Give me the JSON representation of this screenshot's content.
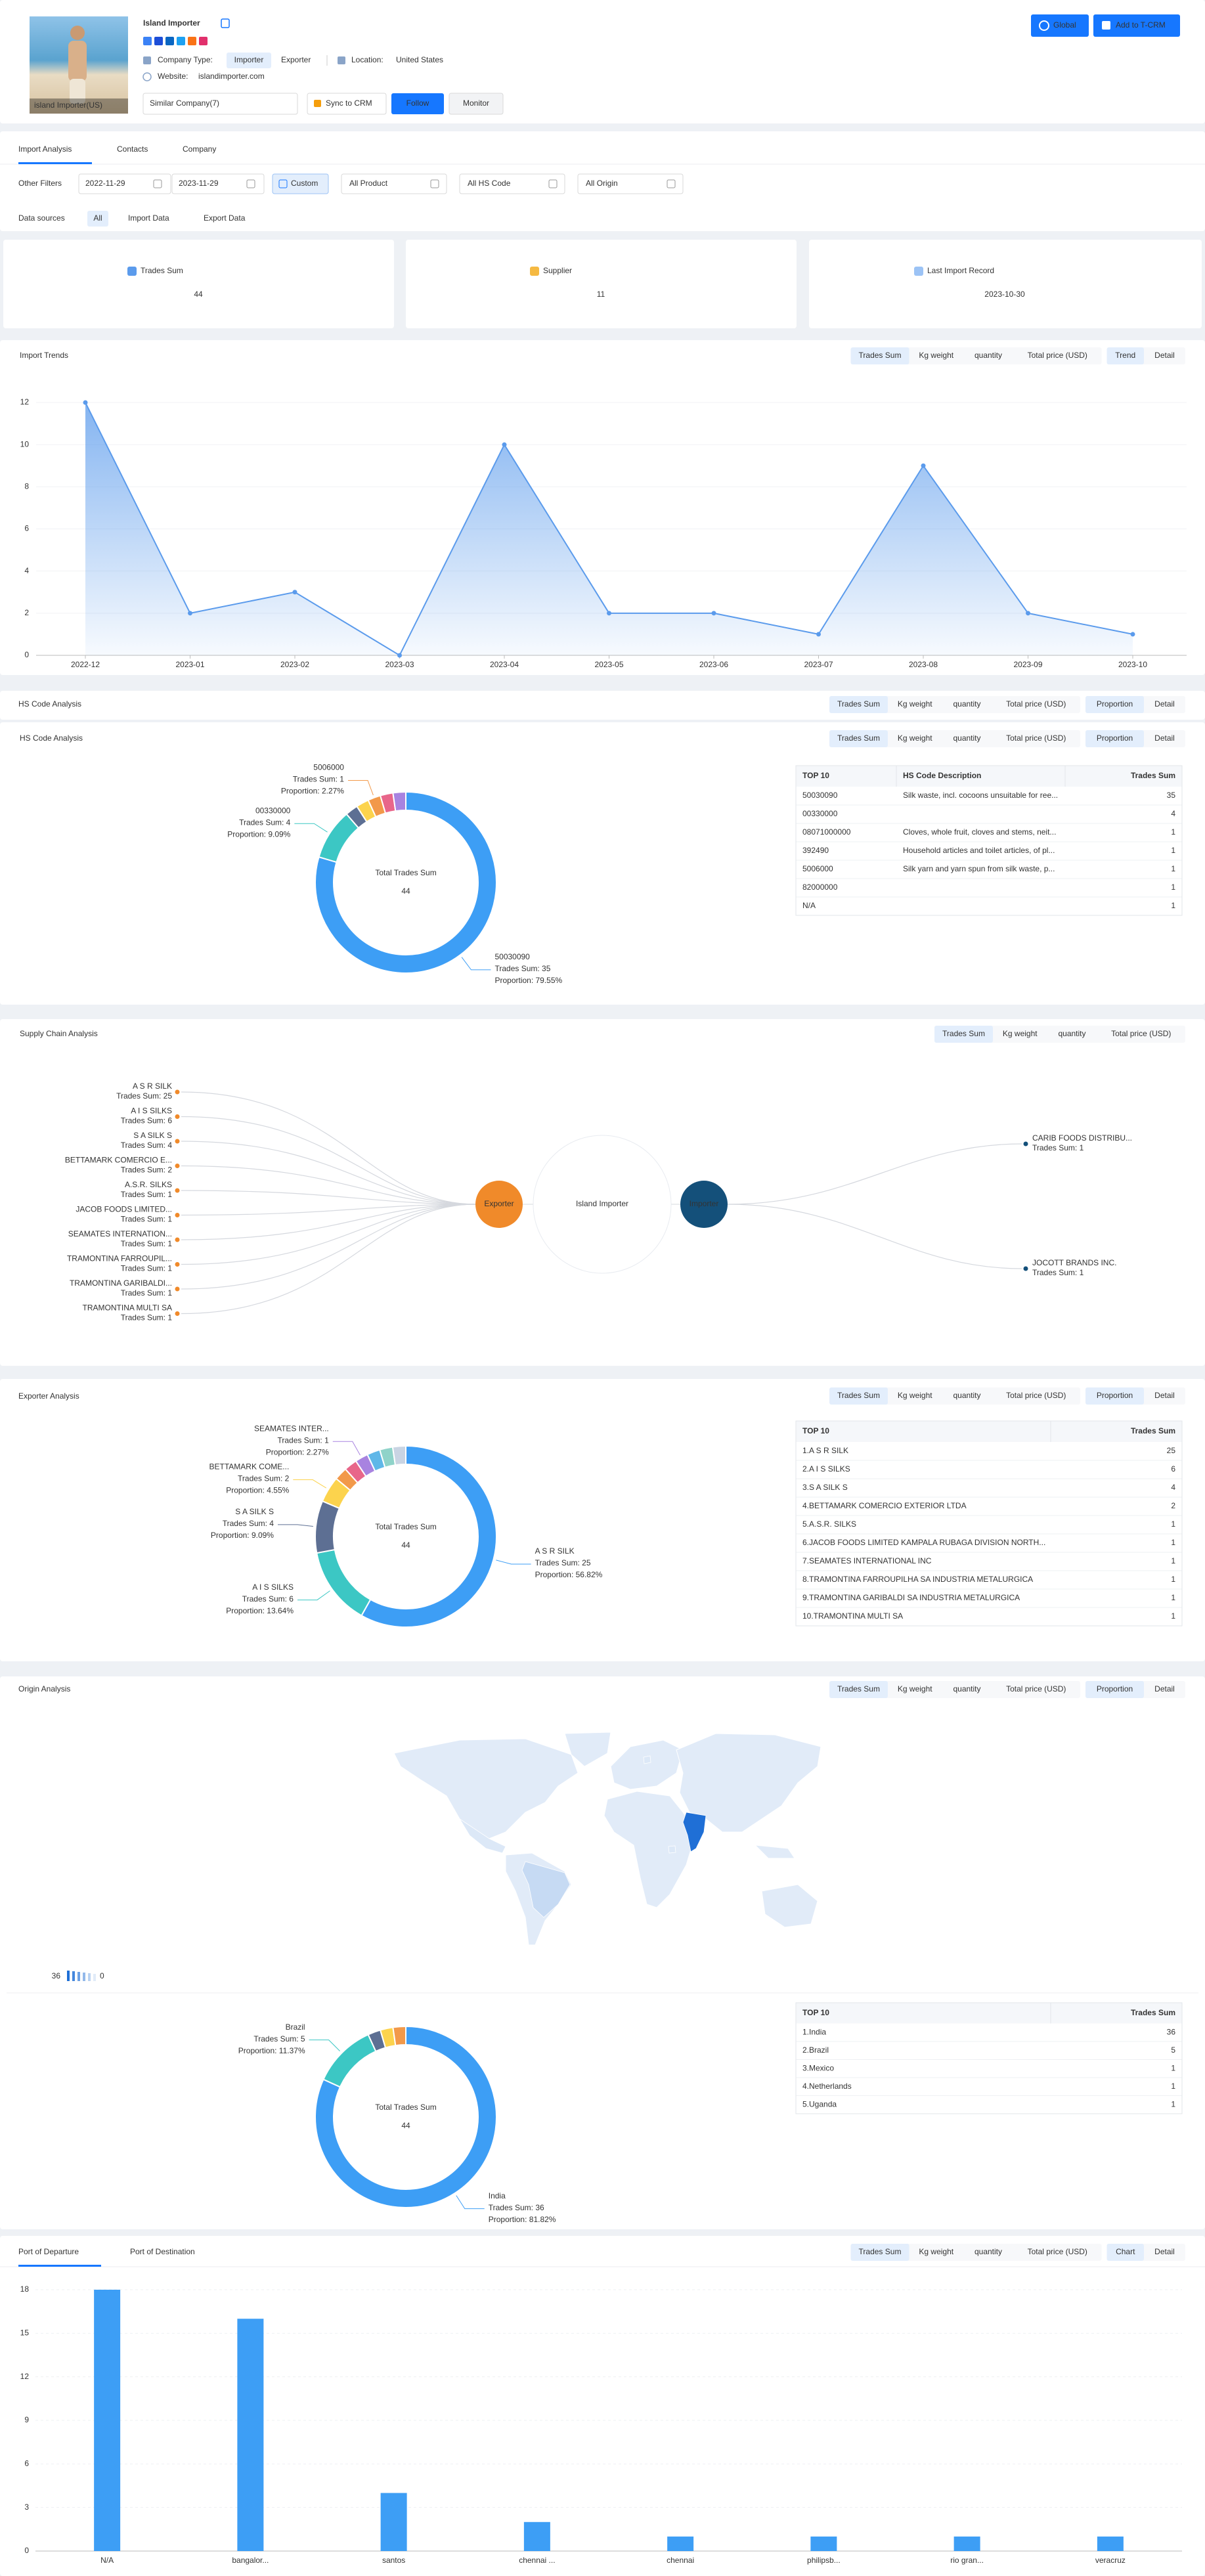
{
  "header": {
    "company_name": "Island Importer",
    "image_caption": "island Importer(US)",
    "company_type_label": "Company Type:",
    "company_types": [
      "Importer",
      "Exporter"
    ],
    "location_label": "Location:",
    "location": "United States",
    "website_label": "Website:",
    "website": "islandimporter.com",
    "similar": "Similar Company(7)",
    "buttons": {
      "sync": "Sync to CRM",
      "follow": "Follow",
      "monitor": "Monitor",
      "global": "Global",
      "add": "Add to T-CRM"
    }
  },
  "tabs": [
    "Import Analysis",
    "Contacts",
    "Company"
  ],
  "filters": {
    "label": "Other Filters",
    "start_date": "2022-11-29",
    "end_date": "2023-11-29",
    "custom": "Custom",
    "product": "All Product",
    "hs_code": "All HS Code",
    "origin": "All Origin"
  },
  "data_sources": {
    "label": "Data sources",
    "options": [
      "All",
      "Import Data",
      "Export Data"
    ]
  },
  "stats": [
    {
      "label": "Trades Sum",
      "value": 44
    },
    {
      "label": "Supplier",
      "value": 11
    },
    {
      "label": "Last Import Record",
      "value": "2023-10-30"
    }
  ],
  "metrics": [
    "Trades Sum",
    "Kg weight",
    "quantity",
    "Total price (USD)"
  ],
  "import_trends": {
    "title": "Import Trends",
    "views": [
      "Trend",
      "Detail"
    ],
    "chart_data": {
      "type": "line",
      "categories": [
        "2022-12",
        "2023-01",
        "2023-02",
        "2023-03",
        "2023-04",
        "2023-05",
        "2023-06",
        "2023-07",
        "2023-08",
        "2023-09",
        "2023-10"
      ],
      "values": [
        12,
        2,
        3,
        0,
        10,
        2,
        2,
        1,
        9,
        2,
        1
      ],
      "color": "#5b9bec",
      "ylim": [
        0,
        12
      ],
      "yticks": [
        0,
        2,
        4,
        6,
        8,
        10,
        12
      ]
    }
  },
  "hs_code": {
    "title": "HS Code Analysis",
    "views": [
      "Proportion",
      "Detail"
    ],
    "chart_data": {
      "type": "pie",
      "center_label": "Total Trades Sum",
      "total": 44,
      "categories": [
        "50030090",
        "00330000",
        "08071000000",
        "392490",
        "5006000",
        "82000000",
        "N/A"
      ],
      "values": [
        35,
        4,
        1,
        1,
        1,
        1,
        1
      ],
      "value_labels": [
        "Trades Sum: 35",
        "Trades Sum: 4",
        null,
        null,
        "Trades Sum: 1",
        null,
        null
      ],
      "proportion_labels": [
        "Proportion: 79.55%",
        "Proportion: 9.09%",
        null,
        null,
        "Proportion: 2.27%",
        null,
        null
      ],
      "colors": [
        "#3d9ef5",
        "#3cc7c4",
        "#5d6f93",
        "#fcd34d",
        "#f2994a",
        "#e8668a",
        "#a883e0"
      ]
    },
    "table": {
      "columns": [
        "TOP 10",
        "HS Code Description",
        "Trades Sum"
      ],
      "rows": [
        [
          "50030090",
          "Silk waste, incl. cocoons unsuitable for ree...",
          35
        ],
        [
          "00330000",
          null,
          4
        ],
        [
          "08071000000",
          "Cloves, whole fruit, cloves and stems, neit...",
          1
        ],
        [
          "392490",
          "Household articles and toilet articles, of pl...",
          1
        ],
        [
          "5006000",
          "Silk yarn and yarn spun from silk waste, p...",
          1
        ],
        [
          "82000000",
          null,
          1
        ],
        [
          "N/A",
          null,
          1
        ]
      ]
    }
  },
  "supply_chain": {
    "title": "Supply Chain Analysis",
    "center": "Island Importer",
    "exporter_node": "Exporter",
    "importer_node": "Importer",
    "exporters": {
      "names": [
        "A S R SILK",
        "A I S SILKS",
        "S A SILK S",
        "BETTAMARK COMERCIO E...",
        "A.S.R. SILKS",
        "JACOB FOODS LIMITED...",
        "SEAMATES INTERNATION...",
        "TRAMONTINA FARROUPIL...",
        "TRAMONTINA GARIBALDI...",
        "TRAMONTINA MULTI SA"
      ],
      "values": [
        25,
        6,
        4,
        2,
        1,
        1,
        1,
        1,
        1,
        1
      ],
      "value_labels": [
        "Trades Sum: 25",
        "Trades Sum: 6",
        "Trades Sum: 4",
        "Trades Sum: 2",
        "Trades Sum: 1",
        "Trades Sum: 1",
        "Trades Sum: 1",
        "Trades Sum: 1",
        "Trades Sum: 1",
        "Trades Sum: 1"
      ]
    },
    "importers": {
      "names": [
        "CARIB FOODS DISTRIBU...",
        "JOCOTT BRANDS INC."
      ],
      "values": [
        1,
        1
      ],
      "value_labels": [
        "Trades Sum: 1",
        "Trades Sum: 1"
      ]
    }
  },
  "exporter": {
    "title": "Exporter Analysis",
    "views": [
      "Proportion",
      "Detail"
    ],
    "chart_data": {
      "type": "pie",
      "center_label": "Total Trades Sum",
      "total": 44,
      "categories": [
        "A S R SILK",
        "A I S SILKS",
        "S A SILK S",
        "BETTAMARK COME...",
        null,
        null,
        "SEAMATES INTER...",
        null,
        null,
        null
      ],
      "values": [
        25,
        6,
        4,
        2,
        1,
        1,
        1,
        1,
        1,
        1
      ],
      "value_labels": [
        "Trades Sum: 25",
        "Trades Sum: 6",
        "Trades Sum: 4",
        "Trades Sum: 2",
        null,
        null,
        "Trades Sum: 1",
        null,
        null,
        null
      ],
      "proportion_labels": [
        "Proportion: 56.82%",
        "Proportion: 13.64%",
        "Proportion: 9.09%",
        "Proportion: 4.55%",
        null,
        null,
        "Proportion: 2.27%",
        null,
        null,
        null
      ],
      "colors": [
        "#3d9ef5",
        "#3cc7c4",
        "#5d6f93",
        "#fcd34d",
        "#f2994a",
        "#e8668a",
        "#a883e0",
        "#5fb7e8",
        "#8fd3c9",
        "#c9d4e3"
      ]
    },
    "table": {
      "columns": [
        "TOP 10",
        "Trades Sum"
      ],
      "rows": [
        [
          "1.A S R SILK",
          25
        ],
        [
          "2.A I S SILKS",
          6
        ],
        [
          "3.S A SILK S",
          4
        ],
        [
          "4.BETTAMARK COMERCIO EXTERIOR LTDA",
          2
        ],
        [
          "5.A.S.R. SILKS",
          1
        ],
        [
          "6.JACOB FOODS LIMITED KAMPALA RUBAGA DIVISION NORTH...",
          1
        ],
        [
          "7.SEAMATES INTERNATIONAL INC",
          1
        ],
        [
          "8.TRAMONTINA FARROUPILHA SA INDUSTRIA METALURGICA",
          1
        ],
        [
          "9.TRAMONTINA GARIBALDI SA INDUSTRIA METALURGICA",
          1
        ],
        [
          "10.TRAMONTINA MULTI SA",
          1
        ]
      ]
    }
  },
  "origin": {
    "title": "Origin Analysis",
    "views": [
      "Proportion",
      "Detail"
    ],
    "map_legend": {
      "max": 36,
      "min": 0
    },
    "chart_data": {
      "type": "pie",
      "center_label": "Total Trades Sum",
      "total": 44,
      "categories": [
        "India",
        "Brazil",
        null,
        null,
        null
      ],
      "values": [
        36,
        5,
        1,
        1,
        1
      ],
      "value_labels": [
        "Trades Sum: 36",
        "Trades Sum: 5",
        null,
        null,
        null
      ],
      "proportion_labels": [
        "Proportion: 81.82%",
        "Proportion: 11.37%",
        null,
        null,
        null
      ],
      "colors": [
        "#3d9ef5",
        "#3cc7c4",
        "#5d6f93",
        "#fcd34d",
        "#f2994a"
      ]
    },
    "table": {
      "columns": [
        "TOP 10",
        "Trades Sum"
      ],
      "rows": [
        [
          "1.India",
          36
        ],
        [
          "2.Brazil",
          5
        ],
        [
          "3.Mexico",
          1
        ],
        [
          "4.Netherlands",
          1
        ],
        [
          "5.Uganda",
          1
        ]
      ]
    }
  },
  "port": {
    "tabs": [
      "Port of Departure",
      "Port of Destination"
    ],
    "views": [
      "Chart",
      "Detail"
    ],
    "chart_data": {
      "type": "bar",
      "categories": [
        "N/A",
        "bangalor...",
        "santos",
        "chennai ...",
        "chennai",
        "philipsb...",
        "rio gran...",
        "veracruz"
      ],
      "values": [
        18,
        16,
        4,
        2,
        1,
        1,
        1,
        1
      ],
      "color": "#3d9ef5",
      "ylim": [
        0,
        18
      ],
      "yticks": [
        0,
        3,
        6,
        9,
        12,
        15,
        18
      ]
    }
  }
}
